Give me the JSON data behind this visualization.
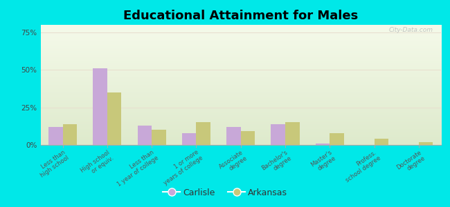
{
  "title": "Educational Attainment for Males",
  "categories": [
    "Less than\nhigh school",
    "High school\nor equiv.",
    "Less than\n1 year of college",
    "1 or more\nyears of college",
    "Associate\ndegree",
    "Bachelor's\ndegree",
    "Master's\ndegree",
    "Profess.\nschool degree",
    "Doctorate\ndegree"
  ],
  "carlisle_values": [
    12,
    51,
    13,
    8,
    12,
    14,
    1,
    0,
    0
  ],
  "arkansas_values": [
    14,
    35,
    10,
    15,
    9,
    15,
    8,
    4,
    2
  ],
  "carlisle_color": "#c8a8d8",
  "arkansas_color": "#c8c87a",
  "background_outer": "#00e8e8",
  "background_inner_top": "#f5faea",
  "background_inner_bot": "#deeacc",
  "yticks": [
    0,
    25,
    50,
    75
  ],
  "ylim": [
    0,
    80
  ],
  "legend_labels": [
    "Carlisle",
    "Arkansas"
  ],
  "watermark": "City-Data.com",
  "bar_width": 0.32
}
